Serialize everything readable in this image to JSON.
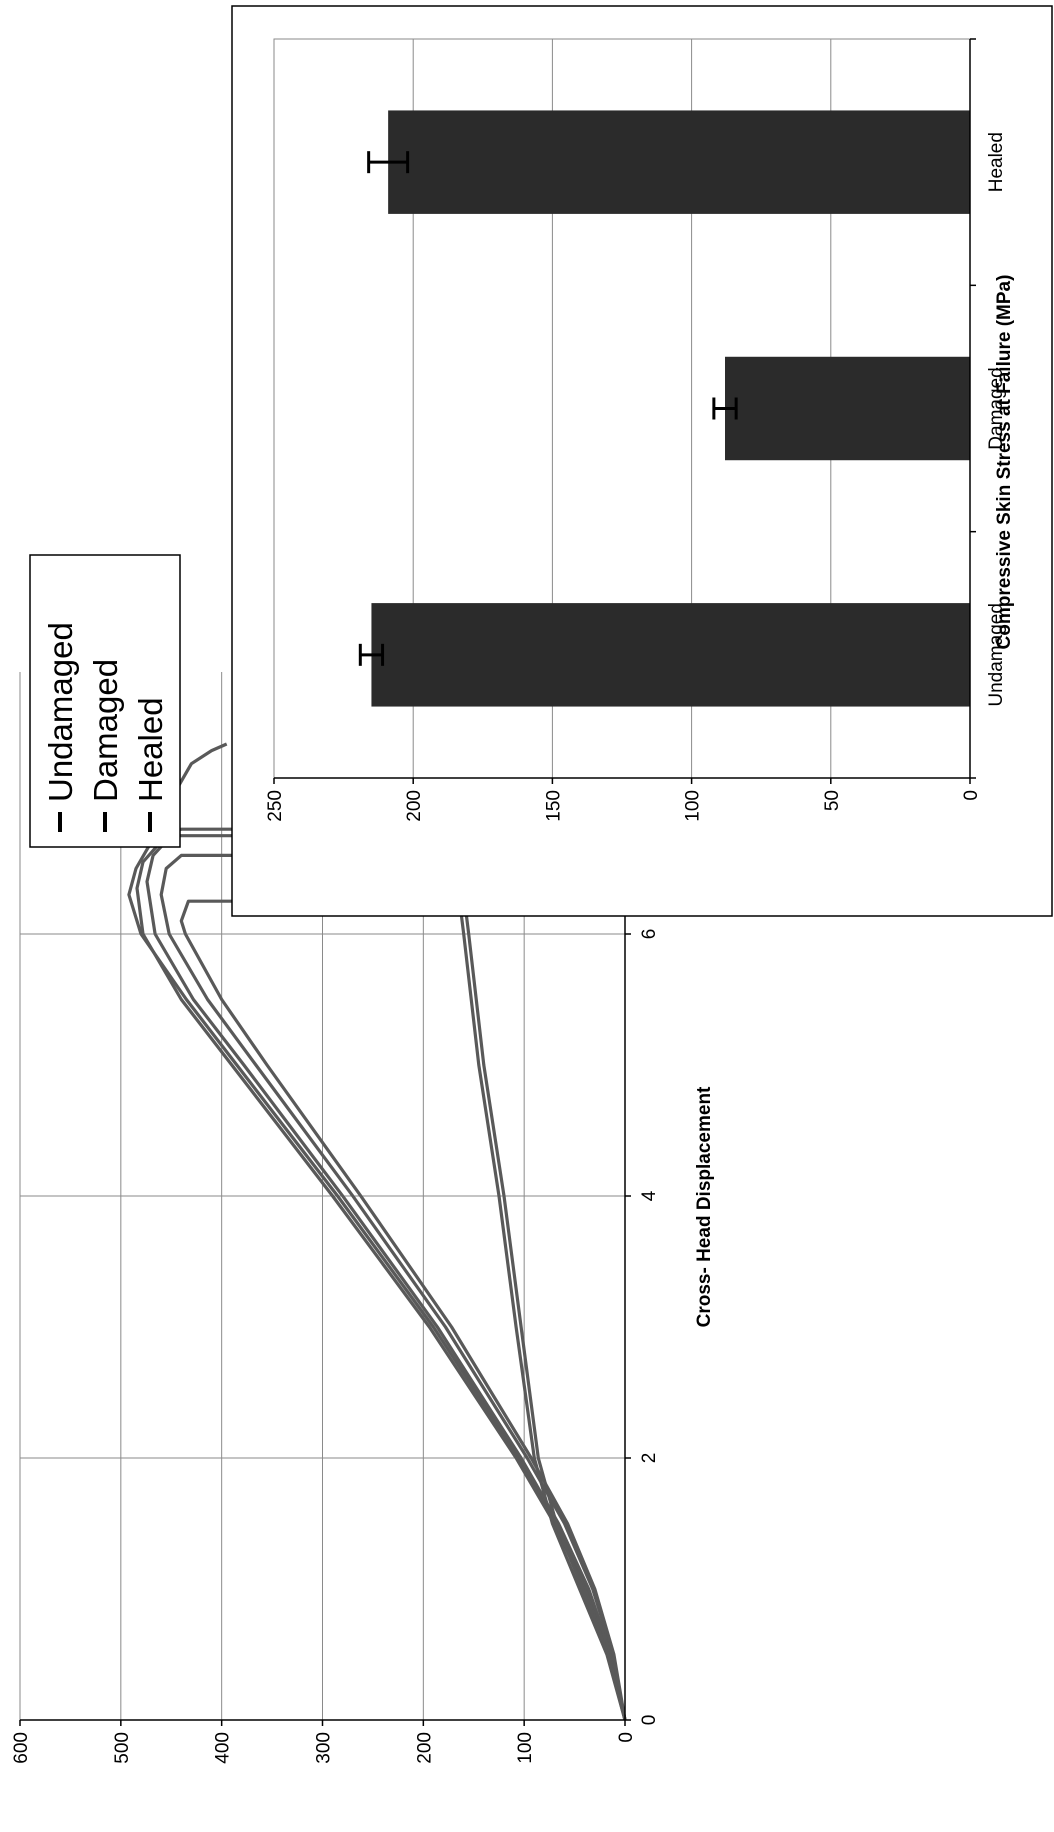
{
  "charts": {
    "main": {
      "title": "",
      "xlabel": "Cross- Head Displacement",
      "ylabel": ""
    },
    "inset": {
      "title": "",
      "xlabel": "",
      "ylabel": "Compressive Skin Stress at Failure (MPa)"
    }
  },
  "legend_labels": [
    "Undamaged",
    "Damaged",
    "Healed"
  ],
  "colors": {
    "curve": "#595959",
    "bar": "#2b2b2b",
    "grid": "#8a8a8a",
    "axis": "#000000"
  },
  "chart_data": [
    {
      "type": "line",
      "title": "",
      "xlabel": "Cross- Head Displacement",
      "ylabel": "",
      "xlim": [
        0,
        8
      ],
      "ylim": [
        0,
        600
      ],
      "xticks": [
        0,
        2,
        4,
        6
      ],
      "yticks": [
        0,
        100,
        200,
        300,
        400,
        500,
        600
      ],
      "grid": true,
      "legend_position": "top-right",
      "series": [
        {
          "name": "Undamaged",
          "x": [
            0,
            0.5,
            1,
            1.5,
            2,
            3,
            4,
            5,
            5.5,
            6,
            6.3,
            6.5,
            6.7,
            6.9,
            7.1,
            7.3,
            7.4,
            7.45
          ],
          "y": [
            0,
            15,
            38,
            68,
            105,
            190,
            285,
            385,
            435,
            480,
            492,
            485,
            470,
            455,
            445,
            430,
            410,
            395
          ]
        },
        {
          "name": "Undamaged",
          "x": [
            0,
            0.5,
            1,
            1.5,
            2,
            3,
            4,
            5,
            5.5,
            6,
            6.35,
            6.55,
            6.75,
            6.8,
            6.8
          ],
          "y": [
            0,
            16,
            40,
            70,
            108,
            194,
            290,
            390,
            440,
            478,
            484,
            478,
            455,
            440,
            115
          ]
        },
        {
          "name": "Undamaged",
          "x": [
            0,
            0.5,
            1,
            1.5,
            2,
            3,
            4,
            5,
            5.5,
            6,
            6.4,
            6.6,
            6.75,
            6.75
          ],
          "y": [
            0,
            14,
            36,
            66,
            103,
            186,
            280,
            378,
            428,
            466,
            474,
            468,
            450,
            92
          ]
        },
        {
          "name": "Damaged",
          "x": [
            0,
            0.5,
            1,
            1.5,
            2,
            3,
            4,
            5,
            6,
            6.5,
            7,
            7.5
          ],
          "y": [
            0,
            18,
            45,
            72,
            90,
            108,
            125,
            145,
            160,
            168,
            175,
            180
          ]
        },
        {
          "name": "Damaged",
          "x": [
            0,
            0.5,
            1,
            1.5,
            2,
            3,
            4,
            5,
            6,
            6.5,
            7,
            7.5
          ],
          "y": [
            0,
            17,
            42,
            68,
            86,
            103,
            120,
            140,
            155,
            163,
            170,
            175
          ]
        },
        {
          "name": "Healed",
          "x": [
            0,
            0.5,
            1,
            1.5,
            2,
            3,
            4,
            5,
            5.5,
            6,
            6.3,
            6.5,
            6.6,
            6.6
          ],
          "y": [
            0,
            12,
            32,
            60,
            97,
            178,
            270,
            366,
            414,
            452,
            460,
            455,
            440,
            145
          ]
        },
        {
          "name": "Healed",
          "x": [
            0,
            0.5,
            1,
            1.5,
            2,
            3,
            4,
            5,
            5.5,
            6,
            6.1,
            6.25,
            6.25
          ],
          "y": [
            0,
            11,
            30,
            57,
            93,
            172,
            262,
            355,
            400,
            436,
            440,
            433,
            195
          ]
        }
      ]
    },
    {
      "type": "bar",
      "title": "",
      "xlabel": "",
      "ylabel": "Compressive Skin Stress at Failure (MPa)",
      "categories": [
        "Undamaged",
        "Damaged",
        "Healed"
      ],
      "values": [
        215,
        88,
        209
      ],
      "errors": [
        4,
        4,
        7
      ],
      "ylim": [
        0,
        250
      ],
      "yticks": [
        0,
        50,
        100,
        150,
        200,
        250
      ],
      "grid": true
    }
  ]
}
